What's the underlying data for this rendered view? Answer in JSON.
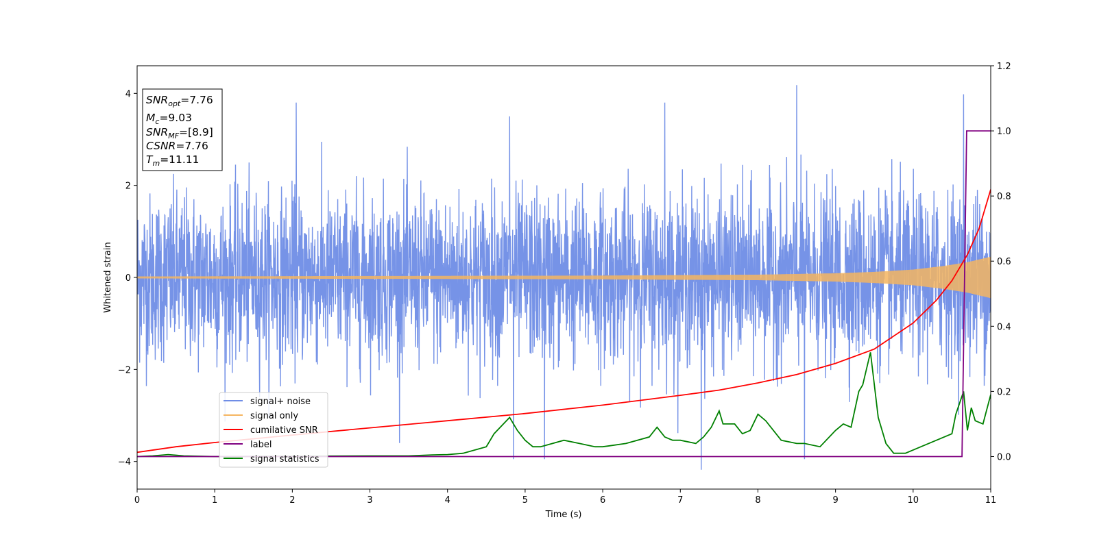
{
  "chart_data": {
    "type": "line",
    "title": "",
    "xlabel": "Time (s)",
    "ylabel": "Whitened strain",
    "xlim": [
      0,
      11
    ],
    "ylim": [
      -4.6,
      4.6
    ],
    "y2lim": [
      -0.1,
      1.2
    ],
    "xticks": [
      "0",
      "1",
      "2",
      "3",
      "4",
      "5",
      "6",
      "7",
      "8",
      "9",
      "10",
      "11"
    ],
    "yticks": [
      "−4",
      "−2",
      "0",
      "2",
      "4"
    ],
    "y2ticks": [
      "0.0",
      "0.2",
      "0.4",
      "0.6",
      "0.8",
      "1.0",
      "1.2"
    ],
    "grid": false,
    "legend_position": "lower-left",
    "colors": {
      "signal_noise": "#6f8de6",
      "signal_only": "#f5b560",
      "cumulative_snr": "#ff0000",
      "label": "#800080",
      "signal_statistics": "#008000"
    },
    "info_box": {
      "snr_opt": {
        "label": "SNR",
        "sub": "opt",
        "value": "=7.76"
      },
      "mc": {
        "label": "M",
        "sub": "c",
        "value": "=9.03"
      },
      "snr_mf": {
        "label": "SNR",
        "sub": "MF",
        "value": "=[8.9]"
      },
      "csnr": {
        "label": "CSNR",
        "value": "=7.76"
      },
      "tm": {
        "label": "T",
        "sub": "m",
        "value": "=11.11"
      }
    },
    "series": [
      {
        "name": "signal+ noise",
        "axis": "left",
        "description_stats": {
          "typical_range": [
            -2.4,
            2.4
          ],
          "max": 4.18,
          "min": -4.18
        },
        "peaks": [
          [
            2.05,
            3.8
          ],
          [
            4.8,
            3.5
          ],
          [
            6.8,
            3.8
          ],
          [
            8.5,
            4.18
          ],
          [
            10.65,
            3.98
          ],
          [
            7.27,
            -4.18
          ],
          [
            4.85,
            -3.95
          ],
          [
            5.25,
            -3.95
          ],
          [
            8.6,
            -3.95
          ]
        ]
      },
      {
        "name": "signal only",
        "axis": "left",
        "envelope": [
          [
            0,
            0.02
          ],
          [
            3,
            0.03
          ],
          [
            6,
            0.04
          ],
          [
            8,
            0.06
          ],
          [
            9,
            0.09
          ],
          [
            9.5,
            0.12
          ],
          [
            10,
            0.17
          ],
          [
            10.4,
            0.25
          ],
          [
            10.7,
            0.33
          ],
          [
            11,
            0.45
          ]
        ]
      },
      {
        "name": "cumilative SNR",
        "axis": "right",
        "x": [
          0,
          0.5,
          1,
          2,
          3,
          4,
          5,
          6,
          7,
          7.5,
          8,
          8.5,
          9,
          9.5,
          10,
          10.3,
          10.5,
          10.7,
          10.85,
          11
        ],
        "y": [
          0.013,
          0.03,
          0.043,
          0.066,
          0.088,
          0.11,
          0.132,
          0.158,
          0.188,
          0.204,
          0.226,
          0.252,
          0.286,
          0.33,
          0.41,
          0.48,
          0.54,
          0.62,
          0.7,
          0.82
        ]
      },
      {
        "name": "label",
        "axis": "right",
        "x": [
          0,
          10.63,
          10.69,
          11
        ],
        "y": [
          0,
          0,
          1,
          1
        ]
      },
      {
        "name": "signal statistics",
        "axis": "right",
        "x": [
          0,
          0.2,
          0.4,
          0.6,
          1,
          2,
          3,
          3.5,
          3.8,
          4.0,
          4.2,
          4.5,
          4.6,
          4.8,
          4.9,
          5.0,
          5.1,
          5.2,
          5.5,
          5.7,
          5.9,
          6.0,
          6.3,
          6.6,
          6.7,
          6.8,
          6.9,
          7.0,
          7.2,
          7.3,
          7.4,
          7.5,
          7.55,
          7.7,
          7.8,
          7.9,
          8.0,
          8.1,
          8.2,
          8.3,
          8.5,
          8.6,
          8.8,
          9.0,
          9.1,
          9.2,
          9.3,
          9.35,
          9.45,
          9.55,
          9.65,
          9.75,
          9.9,
          10.1,
          10.3,
          10.5,
          10.55,
          10.65,
          10.7,
          10.75,
          10.8,
          10.9,
          11.0
        ],
        "y": [
          0.0,
          0.002,
          0.006,
          0.002,
          0.0,
          0.001,
          0.002,
          0.002,
          0.005,
          0.006,
          0.01,
          0.03,
          0.07,
          0.12,
          0.08,
          0.05,
          0.03,
          0.03,
          0.05,
          0.04,
          0.03,
          0.03,
          0.04,
          0.06,
          0.09,
          0.06,
          0.05,
          0.05,
          0.04,
          0.06,
          0.09,
          0.14,
          0.1,
          0.1,
          0.07,
          0.08,
          0.13,
          0.11,
          0.08,
          0.05,
          0.04,
          0.04,
          0.03,
          0.08,
          0.1,
          0.09,
          0.2,
          0.22,
          0.32,
          0.12,
          0.04,
          0.01,
          0.01,
          0.03,
          0.05,
          0.07,
          0.13,
          0.2,
          0.08,
          0.15,
          0.11,
          0.1,
          0.19
        ]
      }
    ]
  }
}
